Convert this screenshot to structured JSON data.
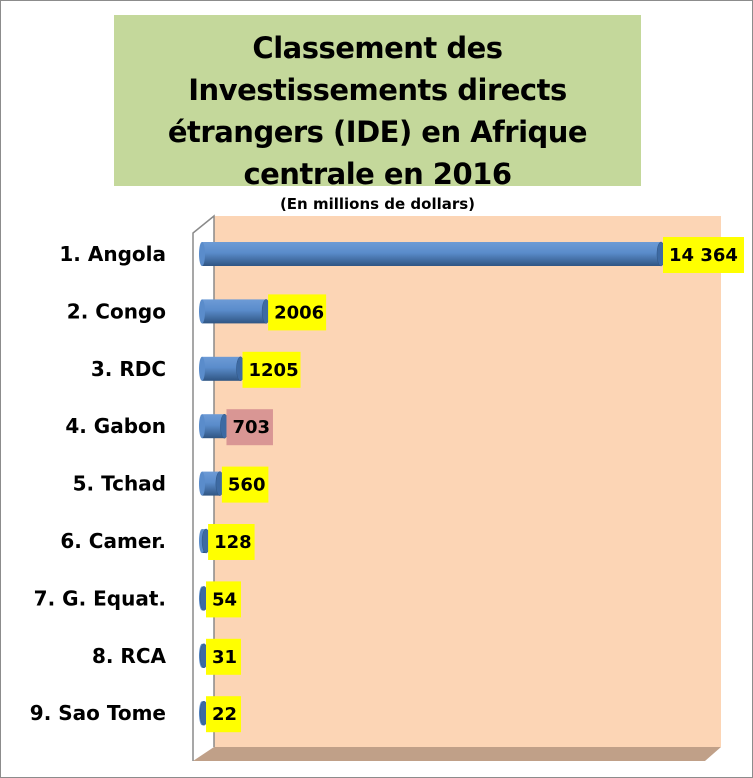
{
  "chart_data": {
    "type": "bar",
    "orientation": "horizontal",
    "style": "3d-cylinder",
    "title": "Classement des Investissements directs étrangers (IDE) en Afrique centrale en 2016",
    "subtitle": "(En millions de dollars)",
    "categories": [
      "1. Angola",
      "2. Congo",
      "3. RDC",
      "4. Gabon",
      "5. Tchad",
      "6. Camer.",
      "7. G. Equat.",
      "8. RCA",
      "9. Sao Tome"
    ],
    "values": [
      14364,
      2006,
      1205,
      703,
      560,
      128,
      54,
      31,
      22
    ],
    "data_labels": [
      "14 364",
      "2006",
      "1205",
      "703",
      "560",
      "128",
      "54",
      "31",
      "22"
    ],
    "label_backgrounds": [
      "#ffff00",
      "#ffff00",
      "#ffff00",
      "#d99694",
      "#ffff00",
      "#ffff00",
      "#ffff00",
      "#ffff00",
      "#ffff00"
    ],
    "xlim": [
      0,
      14364
    ],
    "grid": false,
    "colors": {
      "bar": "#4f81bd",
      "plot_wall": "#fcd5b5",
      "floor": "#c0a088",
      "title_bg": "#c4d89b"
    }
  }
}
